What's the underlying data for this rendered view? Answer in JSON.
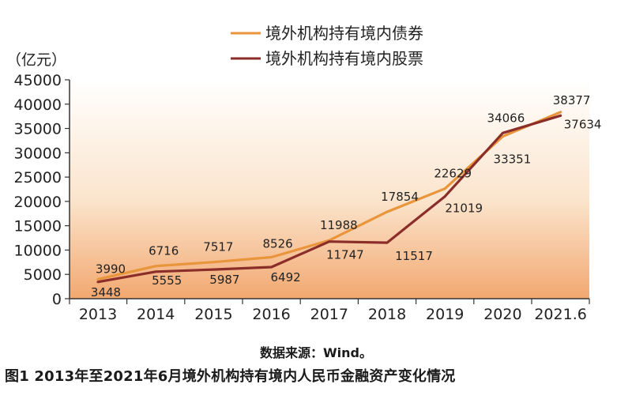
{
  "chart_data": {
    "type": "line",
    "unit_label": "（亿元）",
    "categories": [
      "2013",
      "2014",
      "2015",
      "2016",
      "2017",
      "2018",
      "2019",
      "2020",
      "2021.6"
    ],
    "ylim": [
      0,
      45000
    ],
    "yticks": [
      0,
      5000,
      10000,
      15000,
      20000,
      25000,
      30000,
      35000,
      40000,
      45000
    ],
    "grid": false,
    "legend_position": "top-center",
    "series": [
      {
        "name": "境外机构持有境内债券",
        "color": "#E8953C",
        "values": [
          3990,
          6716,
          7517,
          8526,
          11988,
          17854,
          22629,
          33351,
          38377
        ]
      },
      {
        "name": "境外机构持有境内股票",
        "color": "#8B2E2A",
        "values": [
          3448,
          5555,
          5987,
          6492,
          11747,
          11517,
          21019,
          34066,
          37634
        ]
      }
    ]
  },
  "source_note": "数据来源：Wind。",
  "figure_caption": "图1  2013年至2021年6月境外机构持有境内人民币金融资产变化情况"
}
